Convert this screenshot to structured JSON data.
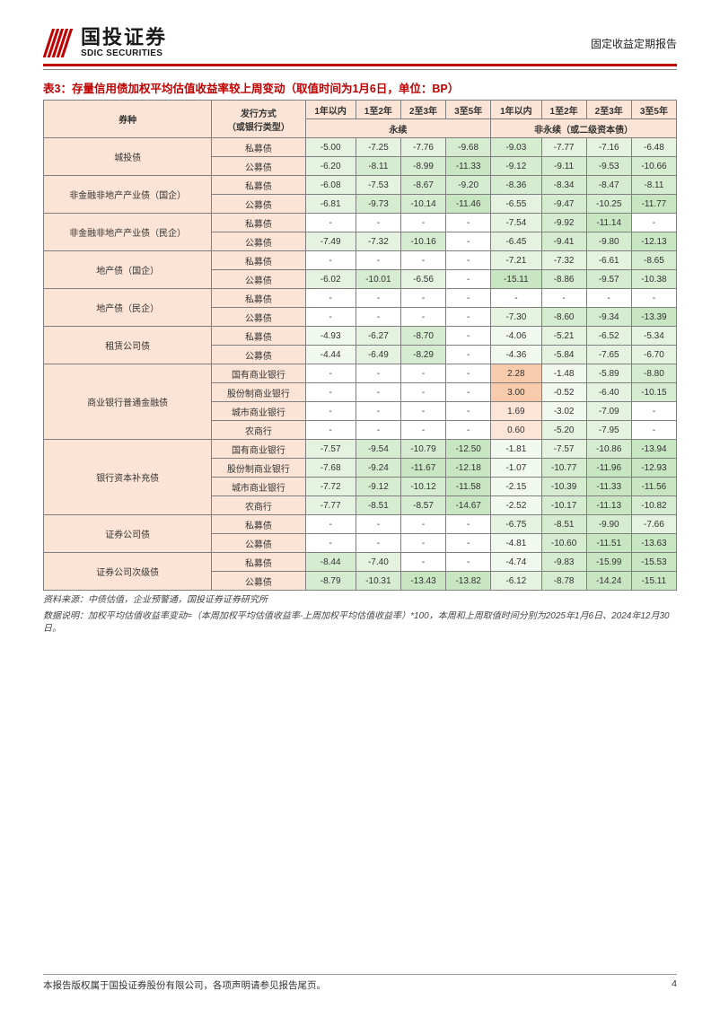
{
  "header": {
    "logo_cn": "国投证券",
    "logo_en": "SDIC SECURITIES",
    "doc_type": "固定收益定期报告"
  },
  "table": {
    "title": "表3：存量信用债加权平均估值收益率较上周变动（取值时间为1月6日，单位：BP）",
    "col_headers": {
      "security": "券种",
      "issue_type": "发行方式\n（或银行类型）",
      "perp": "永续",
      "nonperp": "非永续（或二级资本债）",
      "tenors": [
        "1年以内",
        "1至2年",
        "2至3年",
        "3至5年"
      ]
    },
    "rows": [
      {
        "cat": "城投债",
        "span": 2,
        "sub": "私募债",
        "perp": [
          "-5.00",
          "-7.25",
          "-7.76",
          "-9.68"
        ],
        "nonperp": [
          "-9.03",
          "-7.77",
          "-7.16",
          "-6.48"
        ]
      },
      {
        "sub": "公募债",
        "perp": [
          "-6.20",
          "-8.11",
          "-8.99",
          "-11.33"
        ],
        "nonperp": [
          "-9.12",
          "-9.11",
          "-9.53",
          "-10.66"
        ]
      },
      {
        "cat": "非金融非地产产业债（国企）",
        "span": 2,
        "sub": "私募债",
        "perp": [
          "-6.08",
          "-7.53",
          "-8.67",
          "-9.20"
        ],
        "nonperp": [
          "-8.36",
          "-8.34",
          "-8.47",
          "-8.11"
        ]
      },
      {
        "sub": "公募债",
        "perp": [
          "-6.81",
          "-9.73",
          "-10.14",
          "-11.46"
        ],
        "nonperp": [
          "-6.55",
          "-9.47",
          "-10.25",
          "-11.77"
        ]
      },
      {
        "cat": "非金融非地产产业债（民企）",
        "span": 2,
        "sub": "私募债",
        "perp": [
          "-",
          "-",
          "-",
          "-"
        ],
        "nonperp": [
          "-7.54",
          "-9.92",
          "-11.14",
          "-"
        ]
      },
      {
        "sub": "公募债",
        "perp": [
          "-7.49",
          "-7.32",
          "-10.16",
          "-"
        ],
        "nonperp": [
          "-6.45",
          "-9.41",
          "-9.80",
          "-12.13"
        ]
      },
      {
        "cat": "地产债（国企）",
        "span": 2,
        "sub": "私募债",
        "perp": [
          "-",
          "-",
          "-",
          "-"
        ],
        "nonperp": [
          "-7.21",
          "-7.32",
          "-6.61",
          "-8.65"
        ]
      },
      {
        "sub": "公募债",
        "perp": [
          "-6.02",
          "-10.01",
          "-6.56",
          "-"
        ],
        "nonperp": [
          "-15.11",
          "-8.86",
          "-9.57",
          "-10.38"
        ]
      },
      {
        "cat": "地产债（民企）",
        "span": 2,
        "sub": "私募债",
        "perp": [
          "-",
          "-",
          "-",
          "-"
        ],
        "nonperp": [
          "-",
          "-",
          "-",
          "-"
        ]
      },
      {
        "sub": "公募债",
        "perp": [
          "-",
          "-",
          "-",
          "-"
        ],
        "nonperp": [
          "-7.30",
          "-8.60",
          "-9.34",
          "-13.39"
        ]
      },
      {
        "cat": "租赁公司债",
        "span": 2,
        "sub": "私募债",
        "perp": [
          "-4.93",
          "-6.27",
          "-8.70",
          "-"
        ],
        "nonperp": [
          "-4.06",
          "-5.21",
          "-6.52",
          "-5.34"
        ]
      },
      {
        "sub": "公募债",
        "perp": [
          "-4.44",
          "-6.49",
          "-8.29",
          "-"
        ],
        "nonperp": [
          "-4.36",
          "-5.84",
          "-7.65",
          "-6.70"
        ]
      },
      {
        "cat": "商业银行普通金融债",
        "span": 4,
        "sub": "国有商业银行",
        "perp": [
          "-",
          "-",
          "-",
          "-"
        ],
        "nonperp": [
          "2.28",
          "-1.48",
          "-5.89",
          "-8.80"
        ]
      },
      {
        "sub": "股份制商业银行",
        "perp": [
          "-",
          "-",
          "-",
          "-"
        ],
        "nonperp": [
          "3.00",
          "-0.52",
          "-6.40",
          "-10.15"
        ]
      },
      {
        "sub": "城市商业银行",
        "perp": [
          "-",
          "-",
          "-",
          "-"
        ],
        "nonperp": [
          "1.69",
          "-3.02",
          "-7.09",
          "-"
        ]
      },
      {
        "sub": "农商行",
        "perp": [
          "-",
          "-",
          "-",
          "-"
        ],
        "nonperp": [
          "0.60",
          "-5.20",
          "-7.95",
          "-"
        ]
      },
      {
        "cat": "银行资本补充债",
        "span": 4,
        "sub": "国有商业银行",
        "perp": [
          "-7.57",
          "-9.54",
          "-10.79",
          "-12.50"
        ],
        "nonperp": [
          "-1.81",
          "-7.57",
          "-10.86",
          "-13.94"
        ]
      },
      {
        "sub": "股份制商业银行",
        "perp": [
          "-7.68",
          "-9.24",
          "-11.67",
          "-12.18"
        ],
        "nonperp": [
          "-1.07",
          "-10.77",
          "-11.96",
          "-12.93"
        ]
      },
      {
        "sub": "城市商业银行",
        "perp": [
          "-7.72",
          "-9.12",
          "-10.12",
          "-11.58"
        ],
        "nonperp": [
          "-2.15",
          "-10.39",
          "-11.33",
          "-11.56"
        ]
      },
      {
        "sub": "农商行",
        "perp": [
          "-7.77",
          "-8.51",
          "-8.57",
          "-14.67"
        ],
        "nonperp": [
          "-2.52",
          "-10.17",
          "-11.13",
          "-10.82"
        ]
      },
      {
        "cat": "证券公司债",
        "span": 2,
        "sub": "私募债",
        "perp": [
          "-",
          "-",
          "-",
          "-"
        ],
        "nonperp": [
          "-6.75",
          "-8.51",
          "-9.90",
          "-7.66"
        ]
      },
      {
        "sub": "公募债",
        "perp": [
          "-",
          "-",
          "-",
          "-"
        ],
        "nonperp": [
          "-4.81",
          "-10.60",
          "-11.51",
          "-13.63"
        ]
      },
      {
        "cat": "证券公司次级债",
        "span": 2,
        "sub": "私募债",
        "perp": [
          "-8.44",
          "-7.40",
          "-",
          "-"
        ],
        "nonperp": [
          "-4.74",
          "-9.83",
          "-15.99",
          "-15.53"
        ]
      },
      {
        "sub": "公募债",
        "perp": [
          "-8.79",
          "-10.31",
          "-13.43",
          "-13.82"
        ],
        "nonperp": [
          "-6.12",
          "-8.78",
          "-14.24",
          "-15.11"
        ]
      }
    ],
    "source_line1": "资料来源：中债估值，企业预警通，国投证券证券研究所",
    "source_line2": "数据说明：加权平均估值收益率变动=（本周加权平均估值收益率-上周加权平均估值收益率）*100，本周和上周取值时间分别为2025年1月6日、2024年12月30日。"
  },
  "footer": {
    "left": "本报告版权属于国投证券股份有限公司，各项声明请参见报告尾页。",
    "page": "4"
  },
  "colors": {
    "accent": "#c00000",
    "header_bg": "#fbe4d5",
    "border": "#7f7f7f"
  }
}
